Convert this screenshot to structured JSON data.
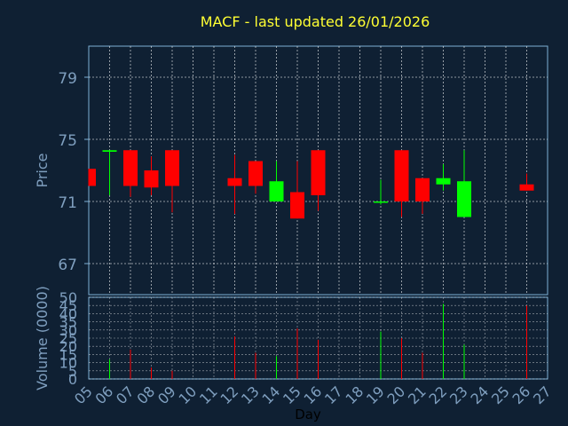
{
  "chart_data": {
    "type": "candlestick",
    "title": "MACF - last updated 26/01/2026",
    "xlabel": "Day",
    "price": {
      "ylabel": "Price",
      "yticks": [
        67,
        71,
        75,
        79
      ],
      "ylim": [
        65,
        81
      ],
      "grid": true
    },
    "volume": {
      "ylabel": "Volume (0000)",
      "yticks": [
        0,
        5,
        10,
        15,
        20,
        25,
        30,
        35,
        40,
        45,
        50
      ],
      "ylim": [
        0,
        50
      ],
      "grid": true
    },
    "categories": [
      "05",
      "06",
      "07",
      "08",
      "09",
      "10",
      "11",
      "12",
      "13",
      "14",
      "15",
      "16",
      "17",
      "18",
      "19",
      "20",
      "21",
      "22",
      "23",
      "24",
      "25",
      "26",
      "27"
    ],
    "candles": [
      {
        "day": "05",
        "open": 73.1,
        "close": 72.0,
        "high": 73.1,
        "low": 72.0,
        "volume": 0
      },
      {
        "day": "06",
        "open": 74.2,
        "close": 74.3,
        "high": 74.3,
        "low": 71.4,
        "volume": 12
      },
      {
        "day": "07",
        "open": 74.3,
        "close": 72.0,
        "high": 74.3,
        "low": 71.3,
        "volume": 18
      },
      {
        "day": "08",
        "open": 73.0,
        "close": 71.9,
        "high": 73.9,
        "low": 71.4,
        "volume": 7
      },
      {
        "day": "09",
        "open": 74.3,
        "close": 72.0,
        "high": 74.3,
        "low": 70.3,
        "volume": 5
      },
      {
        "day": "12",
        "open": 72.5,
        "close": 72.0,
        "high": 74.0,
        "low": 70.2,
        "volume": 26
      },
      {
        "day": "13",
        "open": 73.6,
        "close": 72.0,
        "high": 73.6,
        "low": 71.5,
        "volume": 16
      },
      {
        "day": "14",
        "open": 71.0,
        "close": 72.3,
        "high": 73.6,
        "low": 71.0,
        "volume": 14
      },
      {
        "day": "15",
        "open": 71.6,
        "close": 69.9,
        "high": 73.6,
        "low": 69.9,
        "volume": 31
      },
      {
        "day": "16",
        "open": 74.3,
        "close": 71.4,
        "high": 74.3,
        "low": 70.4,
        "volume": 24
      },
      {
        "day": "19",
        "open": 71.0,
        "close": 71.0,
        "high": 72.4,
        "low": 70.8,
        "volume": 29
      },
      {
        "day": "20",
        "open": 74.3,
        "close": 71.0,
        "high": 74.3,
        "low": 70.0,
        "volume": 25
      },
      {
        "day": "21",
        "open": 72.5,
        "close": 71.0,
        "high": 72.5,
        "low": 70.2,
        "volume": 16
      },
      {
        "day": "22",
        "open": 72.1,
        "close": 72.5,
        "high": 73.4,
        "low": 71.7,
        "volume": 46
      },
      {
        "day": "23",
        "open": 70.0,
        "close": 72.3,
        "high": 74.3,
        "low": 70.0,
        "volume": 21
      },
      {
        "day": "26",
        "open": 72.1,
        "close": 71.7,
        "high": 72.8,
        "low": 71.7,
        "volume": 45
      }
    ],
    "colors": {
      "background": "#0f2033",
      "title": "#ffff33",
      "axis": "#7eb0d6",
      "grid": "#ffffff",
      "up": "#00ff00",
      "down": "#ff0000",
      "label": "#7f9fbf",
      "xlabel": "#000000"
    }
  }
}
